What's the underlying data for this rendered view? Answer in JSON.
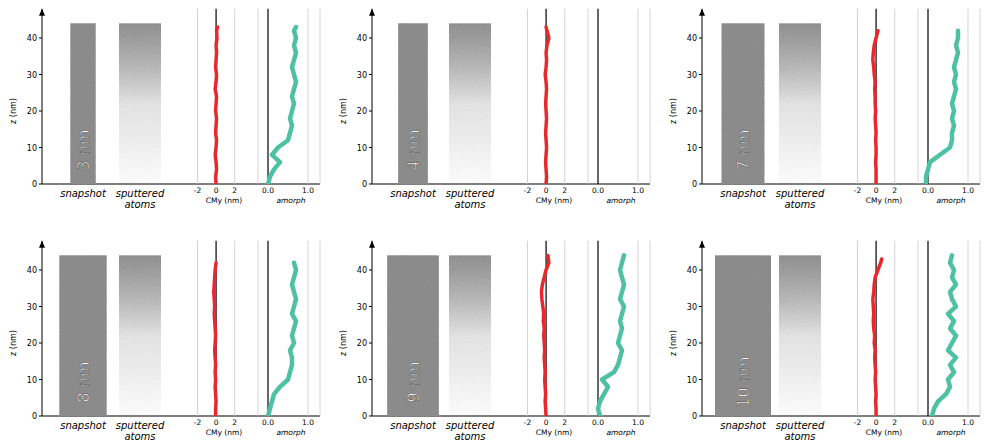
{
  "chart_data": [
    {
      "type": "line",
      "label": "3 nm",
      "diameter": 3,
      "rod_length": 44,
      "snapshot_label": "snapshot",
      "sputtered_label": "sputtered atoms",
      "ylabel": "z (nm)",
      "ylim": [
        0,
        48
      ],
      "yticks": [
        0,
        10,
        20,
        30,
        40
      ],
      "series": [
        {
          "xlabel": "CMy (nm)",
          "color": "#e8282d",
          "xlim": [
            -2.8,
            4.5
          ],
          "xticks": [
            -2,
            0,
            2
          ],
          "grid": true,
          "y": [
            0,
            2,
            4,
            6,
            8,
            10,
            12,
            14,
            16,
            18,
            20,
            22,
            24,
            26,
            28,
            30,
            32,
            34,
            36,
            38,
            40,
            42,
            43
          ],
          "x": [
            0.0,
            -0.05,
            0.05,
            0.0,
            -0.1,
            0.0,
            0.05,
            -0.05,
            0.0,
            0.05,
            -0.05,
            0.0,
            0.05,
            -0.1,
            0.0,
            0.05,
            -0.05,
            0.0,
            0.05,
            0.0,
            0.1,
            0.05,
            0.15
          ]
        },
        {
          "xlabel": "amorph",
          "color": "#4fc1a3",
          "xlim": [
            -0.25,
            1.3
          ],
          "xticks": [
            {
              "value": 0,
              "label": "0.0"
            },
            {
              "value": 1,
              "label": "1.0"
            }
          ],
          "grid": true,
          "y": [
            0,
            2,
            4,
            6,
            8,
            10,
            12,
            14,
            16,
            18,
            20,
            22,
            24,
            26,
            28,
            30,
            32,
            34,
            36,
            38,
            40,
            42,
            43
          ],
          "x": [
            0.0,
            0.05,
            0.15,
            0.3,
            0.1,
            0.25,
            0.5,
            0.55,
            0.6,
            0.55,
            0.6,
            0.65,
            0.6,
            0.65,
            0.7,
            0.65,
            0.6,
            0.65,
            0.7,
            0.65,
            0.7,
            0.65,
            0.7
          ]
        }
      ]
    },
    {
      "type": "line",
      "label": "4 nm",
      "diameter": 4,
      "rod_length": 44,
      "snapshot_label": "snapshot",
      "sputtered_label": "sputtered atoms",
      "ylabel": "z (nm)",
      "ylim": [
        0,
        48
      ],
      "yticks": [
        0,
        10,
        20,
        30,
        40
      ],
      "series": [
        {
          "xlabel": "CMy (nm)",
          "color": "#e8282d",
          "xlim": [
            -2.8,
            4.5
          ],
          "xticks": [
            -2,
            0,
            2
          ],
          "grid": true,
          "y": [
            0,
            2,
            4,
            6,
            8,
            10,
            12,
            14,
            16,
            18,
            20,
            22,
            24,
            26,
            28,
            30,
            32,
            34,
            36,
            38,
            40,
            42,
            43
          ],
          "x": [
            0.0,
            0.05,
            0.0,
            -0.05,
            0.0,
            0.05,
            0.0,
            -0.05,
            0.0,
            0.05,
            0.0,
            -0.05,
            0.0,
            0.05,
            0.0,
            -0.1,
            0.0,
            0.05,
            0.0,
            0.1,
            0.3,
            0.1,
            0.0
          ]
        },
        {
          "xlabel": "amorph",
          "color": "#4fc1a3",
          "xlim": [
            -0.25,
            1.3
          ],
          "xticks": [
            {
              "value": 0,
              "label": "0.0"
            },
            {
              "value": 1,
              "label": "1.0"
            }
          ],
          "grid": true,
          "y": [],
          "x": []
        }
      ]
    },
    {
      "type": "line",
      "label": "7 nm",
      "diameter": 7,
      "rod_length": 44,
      "snapshot_label": "snapshot",
      "sputtered_label": "sputtered atoms",
      "ylabel": "z (nm)",
      "ylim": [
        0,
        48
      ],
      "yticks": [
        0,
        10,
        20,
        30,
        40
      ],
      "series": [
        {
          "xlabel": "CMy (nm)",
          "color": "#e8282d",
          "xlim": [
            -2.8,
            4.5
          ],
          "xticks": [
            -2,
            0,
            2
          ],
          "grid": true,
          "y": [
            0,
            2,
            4,
            6,
            8,
            10,
            12,
            14,
            16,
            18,
            20,
            22,
            24,
            26,
            28,
            30,
            32,
            34,
            36,
            38,
            40,
            42
          ],
          "x": [
            0.0,
            0.0,
            0.0,
            -0.05,
            0.0,
            0.0,
            -0.05,
            0.0,
            -0.05,
            -0.1,
            -0.05,
            -0.1,
            -0.1,
            -0.15,
            -0.1,
            -0.2,
            -0.25,
            -0.35,
            -0.3,
            -0.2,
            0.0,
            0.2
          ]
        },
        {
          "xlabel": "amorph",
          "color": "#4fc1a3",
          "xlim": [
            -0.25,
            1.3
          ],
          "xticks": [
            {
              "value": 0,
              "label": "0.0"
            },
            {
              "value": 1,
              "label": "1.0"
            }
          ],
          "grid": true,
          "y": [
            0,
            2,
            4,
            6,
            8,
            10,
            12,
            14,
            16,
            18,
            20,
            22,
            24,
            26,
            28,
            30,
            32,
            34,
            36,
            38,
            40,
            42
          ],
          "x": [
            -0.05,
            -0.05,
            0.0,
            0.05,
            0.3,
            0.55,
            0.6,
            0.6,
            0.65,
            0.6,
            0.65,
            0.6,
            0.65,
            0.7,
            0.65,
            0.7,
            0.65,
            0.7,
            0.75,
            0.7,
            0.75,
            0.75
          ]
        }
      ]
    },
    {
      "type": "line",
      "label": "8 nm",
      "diameter": 8,
      "rod_length": 44,
      "snapshot_label": "snapshot",
      "sputtered_label": "sputtered atoms",
      "ylabel": "z (nm)",
      "ylim": [
        0,
        48
      ],
      "yticks": [
        0,
        10,
        20,
        30,
        40
      ],
      "series": [
        {
          "xlabel": "CMy (nm)",
          "color": "#e8282d",
          "xlim": [
            -2.8,
            4.5
          ],
          "xticks": [
            -2,
            0,
            2
          ],
          "grid": true,
          "y": [
            0,
            2,
            4,
            6,
            8,
            10,
            12,
            14,
            16,
            18,
            20,
            22,
            24,
            26,
            28,
            30,
            32,
            34,
            36,
            38,
            40,
            42
          ],
          "x": [
            -0.05,
            -0.05,
            0.0,
            -0.05,
            -0.1,
            -0.05,
            -0.1,
            -0.05,
            -0.1,
            -0.15,
            -0.1,
            -0.05,
            -0.1,
            -0.15,
            -0.2,
            -0.15,
            -0.2,
            -0.25,
            -0.2,
            -0.15,
            -0.1,
            0.0
          ]
        },
        {
          "xlabel": "amorph",
          "color": "#4fc1a3",
          "xlim": [
            -0.25,
            1.3
          ],
          "xticks": [
            {
              "value": 0,
              "label": "0.0"
            },
            {
              "value": 1,
              "label": "1.0"
            }
          ],
          "grid": true,
          "y": [
            0,
            2,
            4,
            6,
            8,
            10,
            12,
            14,
            16,
            18,
            20,
            22,
            24,
            26,
            28,
            30,
            32,
            34,
            36,
            38,
            40,
            42
          ],
          "x": [
            0.0,
            0.05,
            0.1,
            0.15,
            0.3,
            0.5,
            0.55,
            0.6,
            0.6,
            0.55,
            0.65,
            0.6,
            0.65,
            0.7,
            0.6,
            0.65,
            0.7,
            0.65,
            0.6,
            0.65,
            0.7,
            0.65
          ]
        }
      ]
    },
    {
      "type": "line",
      "label": "9 nm",
      "diameter": 9,
      "rod_length": 44,
      "snapshot_label": "snapshot",
      "sputtered_label": "sputtered atoms",
      "ylabel": "z (nm)",
      "ylim": [
        0,
        48
      ],
      "yticks": [
        0,
        10,
        20,
        30,
        40
      ],
      "series": [
        {
          "xlabel": "CMy (nm)",
          "color": "#e8282d",
          "xlim": [
            -2.8,
            4.5
          ],
          "xticks": [
            -2,
            0,
            2
          ],
          "grid": true,
          "y": [
            0,
            2,
            4,
            6,
            8,
            10,
            12,
            14,
            16,
            18,
            20,
            22,
            24,
            26,
            28,
            30,
            32,
            34,
            36,
            38,
            40,
            42,
            44
          ],
          "x": [
            0.0,
            -0.05,
            -0.1,
            -0.05,
            -0.1,
            -0.15,
            -0.1,
            -0.15,
            -0.2,
            -0.15,
            -0.2,
            -0.25,
            -0.2,
            -0.3,
            -0.25,
            -0.35,
            -0.45,
            -0.5,
            -0.4,
            -0.2,
            0.0,
            0.3,
            0.2
          ]
        },
        {
          "xlabel": "amorph",
          "color": "#4fc1a3",
          "xlim": [
            -0.25,
            1.3
          ],
          "xticks": [
            {
              "value": 0,
              "label": "0.0"
            },
            {
              "value": 1,
              "label": "1.0"
            }
          ],
          "grid": true,
          "y": [
            0,
            2,
            4,
            6,
            8,
            10,
            12,
            14,
            16,
            18,
            20,
            22,
            24,
            26,
            28,
            30,
            32,
            34,
            36,
            38,
            40,
            42,
            44
          ],
          "x": [
            0.05,
            0.0,
            0.05,
            0.15,
            0.25,
            0.1,
            0.4,
            0.5,
            0.55,
            0.6,
            0.5,
            0.55,
            0.6,
            0.55,
            0.6,
            0.65,
            0.55,
            0.6,
            0.65,
            0.6,
            0.55,
            0.6,
            0.65
          ]
        }
      ]
    },
    {
      "type": "line",
      "label": "10 nm",
      "diameter": 10,
      "rod_length": 44,
      "snapshot_label": "snapshot",
      "sputtered_label": "sputtered atoms",
      "ylabel": "z (nm)",
      "ylim": [
        0,
        48
      ],
      "yticks": [
        0,
        10,
        20,
        30,
        40
      ],
      "series": [
        {
          "xlabel": "CMy (nm)",
          "color": "#e8282d",
          "xlim": [
            -2.8,
            4.5
          ],
          "xticks": [
            -2,
            0,
            2
          ],
          "grid": true,
          "y": [
            0,
            2,
            4,
            6,
            8,
            10,
            12,
            14,
            16,
            18,
            20,
            22,
            24,
            26,
            28,
            30,
            32,
            34,
            36,
            38,
            40,
            42,
            43
          ],
          "x": [
            0.0,
            0.0,
            -0.05,
            0.0,
            -0.05,
            -0.1,
            -0.05,
            -0.1,
            -0.15,
            -0.1,
            -0.2,
            -0.15,
            -0.25,
            -0.3,
            -0.25,
            -0.3,
            -0.35,
            -0.25,
            -0.2,
            -0.1,
            0.2,
            0.5,
            0.6
          ]
        },
        {
          "xlabel": "amorph",
          "color": "#4fc1a3",
          "xlim": [
            -0.25,
            1.3
          ],
          "xticks": [
            {
              "value": 0,
              "label": "0.0"
            },
            {
              "value": 1,
              "label": "1.0"
            }
          ],
          "grid": true,
          "y": [
            0,
            2,
            4,
            6,
            8,
            10,
            12,
            14,
            16,
            18,
            20,
            22,
            24,
            26,
            28,
            30,
            32,
            34,
            36,
            38,
            40,
            42,
            44
          ],
          "x": [
            0.1,
            0.15,
            0.25,
            0.45,
            0.55,
            0.5,
            0.65,
            0.55,
            0.7,
            0.5,
            0.6,
            0.7,
            0.55,
            0.65,
            0.5,
            0.7,
            0.6,
            0.55,
            0.7,
            0.6,
            0.65,
            0.55,
            0.6
          ]
        }
      ]
    }
  ]
}
